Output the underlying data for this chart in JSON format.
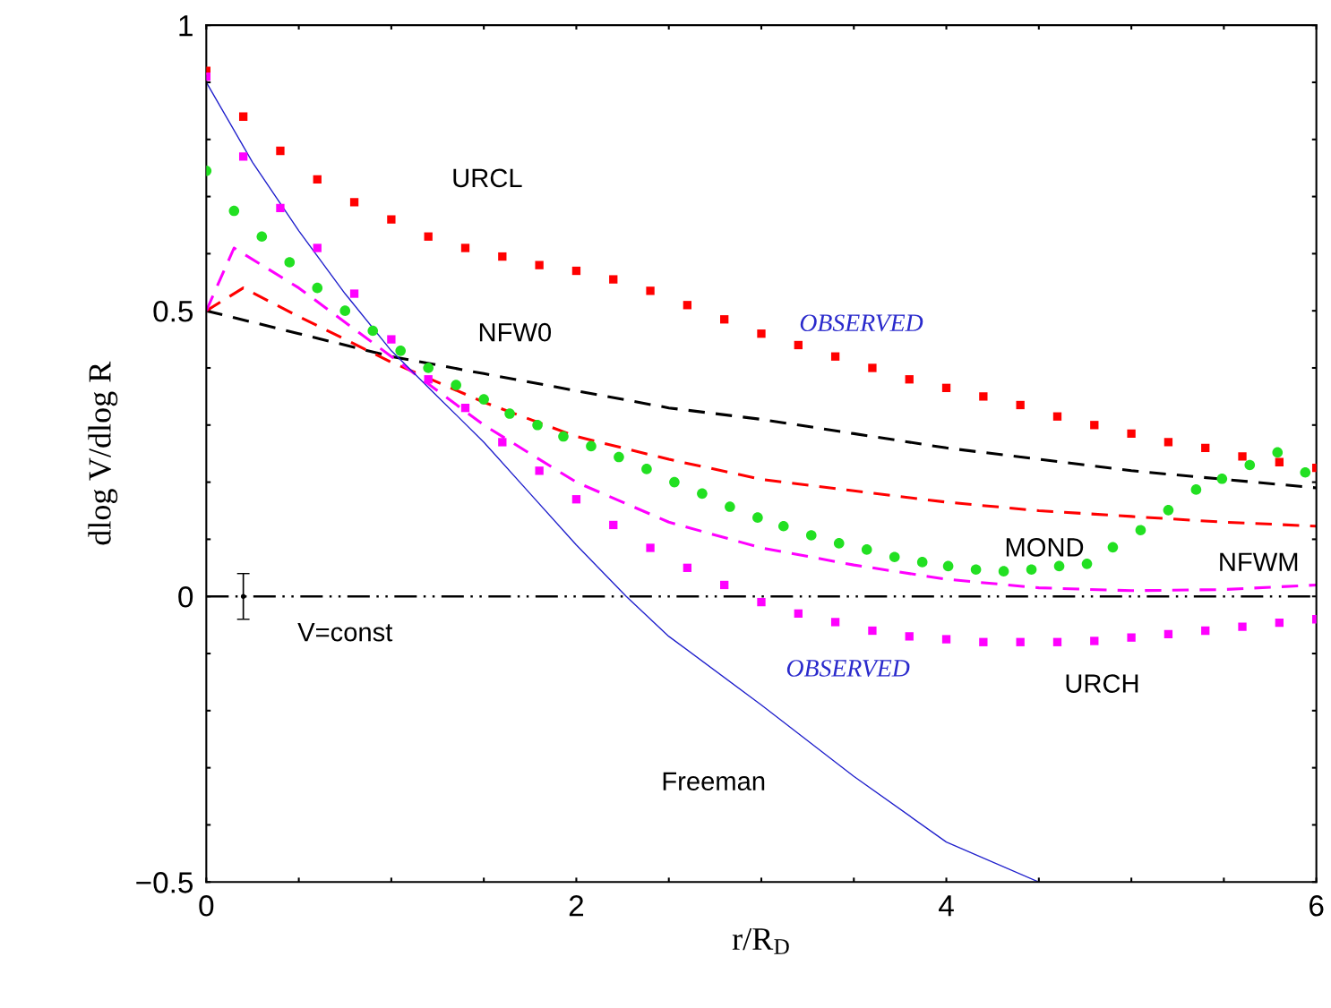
{
  "chart_data": {
    "type": "line",
    "xlabel": "r/R$_{D}$",
    "ylabel": "dlog V/dlog R",
    "xlim": [
      0,
      6
    ],
    "ylim": [
      -0.5,
      1
    ],
    "xticks": [
      0,
      {
        "value": 0.5,
        "label": null
      },
      {
        "value": 1,
        "label": null
      },
      {
        "value": 1.5,
        "label": null
      },
      2,
      {
        "value": 2.5,
        "label": null
      },
      {
        "value": 3,
        "label": null
      },
      {
        "value": 3.5,
        "label": null
      },
      4,
      {
        "value": 4.5,
        "label": null
      },
      {
        "value": 5,
        "label": null
      },
      {
        "value": 5.5,
        "label": null
      },
      6
    ],
    "yticks": [
      {
        "value": -0.5,
        "label": "−0.5"
      },
      {
        "value": -0.4,
        "label": null
      },
      {
        "value": -0.3,
        "label": null
      },
      {
        "value": -0.2,
        "label": null
      },
      {
        "value": -0.1,
        "label": null
      },
      0,
      {
        "value": 0.1,
        "label": null
      },
      {
        "value": 0.2,
        "label": null
      },
      {
        "value": 0.3,
        "label": null
      },
      {
        "value": 0.4,
        "label": null
      },
      0.5,
      {
        "value": 0.6,
        "label": null
      },
      {
        "value": 0.7,
        "label": null
      },
      {
        "value": 0.8,
        "label": null
      },
      {
        "value": 0.9,
        "label": null
      },
      1
    ],
    "grid": false,
    "legend": false,
    "series": [
      {
        "type": "scatter",
        "marker": "square",
        "color": "#ff0000",
        "x": [
          0,
          0.2,
          0.4,
          0.6,
          0.8,
          1.0,
          1.2,
          1.4,
          1.6,
          1.8,
          2.0,
          2.2,
          2.4,
          2.6,
          2.8,
          3.0,
          3.2,
          3.4,
          3.6,
          3.8,
          4.0,
          4.2,
          4.4,
          4.6,
          4.8,
          5.0,
          5.2,
          5.4,
          5.6,
          5.8,
          6.0
        ],
        "values": [
          0.92,
          0.84,
          0.78,
          0.73,
          0.69,
          0.66,
          0.63,
          0.61,
          0.595,
          0.58,
          0.57,
          0.555,
          0.535,
          0.51,
          0.485,
          0.46,
          0.44,
          0.42,
          0.4,
          0.38,
          0.365,
          0.35,
          0.335,
          0.315,
          0.3,
          0.285,
          0.27,
          0.26,
          0.245,
          0.235,
          0.225
        ]
      },
      {
        "type": "scatter",
        "marker": "square",
        "color": "#ff00ff",
        "x": [
          0,
          0.2,
          0.4,
          0.6,
          0.8,
          1.0,
          1.2,
          1.4,
          1.6,
          1.8,
          2.0,
          2.2,
          2.4,
          2.6,
          2.8,
          3.0,
          3.2,
          3.4,
          3.6,
          3.8,
          4.0,
          4.2,
          4.4,
          4.6,
          4.8,
          5.0,
          5.2,
          5.4,
          5.6,
          5.8,
          6.0
        ],
        "values": [
          0.91,
          0.77,
          0.68,
          0.61,
          0.53,
          0.45,
          0.38,
          0.33,
          0.27,
          0.22,
          0.17,
          0.125,
          0.085,
          0.05,
          0.02,
          -0.01,
          -0.03,
          -0.045,
          -0.06,
          -0.07,
          -0.075,
          -0.08,
          -0.08,
          -0.08,
          -0.078,
          -0.072,
          -0.066,
          -0.06,
          -0.053,
          -0.046,
          -0.04
        ]
      },
      {
        "type": "scatter",
        "marker": "circle",
        "color": "#22e022",
        "x": [
          0,
          0.15,
          0.3,
          0.45,
          0.6,
          0.75,
          0.9,
          1.05,
          1.2,
          1.35,
          1.5,
          1.64,
          1.79,
          1.93,
          2.08,
          2.23,
          2.38,
          2.53,
          2.68,
          2.83,
          2.98,
          3.12,
          3.27,
          3.42,
          3.57,
          3.72,
          3.87,
          4.01,
          4.16,
          4.31,
          4.46,
          4.61,
          4.76,
          4.9,
          5.05,
          5.2,
          5.35,
          5.49,
          5.64,
          5.79,
          5.94
        ],
        "values": [
          0.745,
          0.675,
          0.63,
          0.585,
          0.54,
          0.5,
          0.465,
          0.43,
          0.4,
          0.37,
          0.345,
          0.32,
          0.3,
          0.28,
          0.263,
          0.244,
          0.223,
          0.2,
          0.18,
          0.157,
          0.138,
          0.123,
          0.107,
          0.093,
          0.082,
          0.069,
          0.06,
          0.053,
          0.047,
          0.044,
          0.047,
          0.053,
          0.057,
          0.086,
          0.116,
          0.151,
          0.187,
          0.206,
          0.23,
          0.252,
          0.217
        ]
      },
      {
        "line_style": "dashed",
        "color": "#000000",
        "x": [
          0,
          0.5,
          1,
          1.5,
          2,
          2.5,
          3,
          3.5,
          4,
          4.5,
          5,
          5.5,
          6
        ],
        "values": [
          0.5,
          0.46,
          0.42,
          0.39,
          0.36,
          0.33,
          0.31,
          0.285,
          0.26,
          0.24,
          0.22,
          0.205,
          0.19
        ]
      },
      {
        "line_style": "dashed",
        "color": "#ff0000",
        "x": [
          0,
          0.2,
          0.5,
          1.0,
          1.5,
          2.0,
          2.5,
          3.0,
          3.5,
          4.0,
          4.5,
          5.0,
          5.5,
          6.0
        ],
        "values": [
          0.5,
          0.54,
          0.49,
          0.41,
          0.34,
          0.28,
          0.24,
          0.205,
          0.185,
          0.165,
          0.15,
          0.14,
          0.13,
          0.123
        ]
      },
      {
        "line_style": "dashed",
        "color": "#ff00ff",
        "x": [
          0,
          0.15,
          0.5,
          1.0,
          1.5,
          2.0,
          2.5,
          3.0,
          3.5,
          4.0,
          4.5,
          5.0,
          5.5,
          6.0
        ],
        "values": [
          0.5,
          0.61,
          0.54,
          0.42,
          0.3,
          0.2,
          0.13,
          0.085,
          0.055,
          0.03,
          0.015,
          0.01,
          0.012,
          0.02
        ]
      },
      {
        "line_style": "solid",
        "color": "#2020cc",
        "x": [
          0,
          0.25,
          0.5,
          0.75,
          1.0,
          1.25,
          1.5,
          1.75,
          2.0,
          2.27,
          2.5,
          3.0,
          3.5,
          4.0,
          4.5
        ],
        "values": [
          0.9,
          0.76,
          0.64,
          0.53,
          0.43,
          0.35,
          0.27,
          0.18,
          0.09,
          0.0,
          -0.07,
          -0.19,
          -0.315,
          -0.43,
          -0.5
        ]
      },
      {
        "type": "scatter",
        "color": "#000000",
        "x": [
          0.2
        ],
        "values": [
          0
        ],
        "errors": [
          0.04
        ]
      }
    ],
    "ref_lines": [
      {
        "axis": "y",
        "value": 0,
        "color": "#000000",
        "line_style": "dashdot"
      }
    ],
    "annotations": [
      "URCL",
      "NFW0",
      "MOND",
      "NFWM",
      "URCH",
      "Freeman",
      "V=const",
      "OBSERVED",
      "OBSERVED"
    ]
  }
}
